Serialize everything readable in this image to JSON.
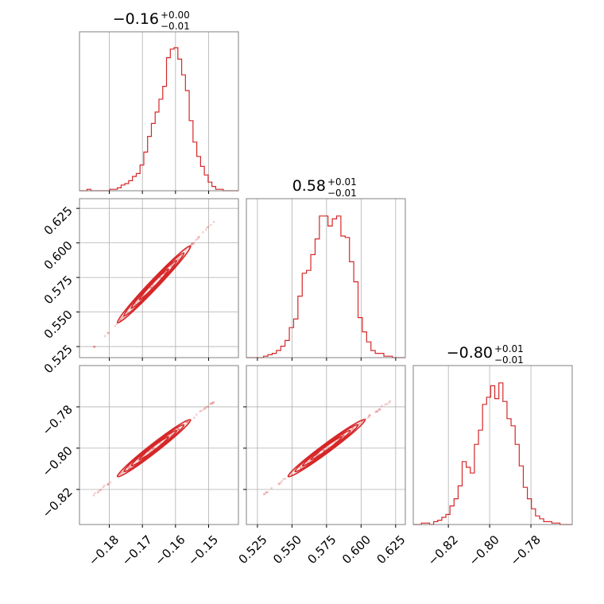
{
  "chart_data": {
    "type": "corner",
    "color": "#d62728",
    "grid": true,
    "params": [
      {
        "median": "−0.16",
        "upper": "+0.00",
        "lower": "−0.01",
        "range": [
          -0.189,
          -0.141
        ],
        "ticks": [
          -0.18,
          -0.17,
          -0.16,
          -0.15
        ],
        "tick_labels": [
          "−0.18",
          "−0.17",
          "−0.16",
          "−0.15"
        ],
        "hist": [
          0.0,
          0.0,
          0.01,
          0.0,
          0.0,
          0.0,
          0.0,
          0.0,
          0.01,
          0.01,
          0.02,
          0.04,
          0.05,
          0.07,
          0.1,
          0.12,
          0.18,
          0.27,
          0.38,
          0.47,
          0.55,
          0.64,
          0.73,
          0.93,
          0.99,
          1.0,
          0.92,
          0.81,
          0.7,
          0.49,
          0.34,
          0.24,
          0.17,
          0.11,
          0.06,
          0.03,
          0.01,
          0.01,
          0.0,
          0.0,
          0.0,
          0.0
        ]
      },
      {
        "median": "0.58",
        "upper": "+0.01",
        "lower": "−0.01",
        "range": [
          0.517,
          0.632
        ],
        "ticks": [
          0.525,
          0.55,
          0.575,
          0.6,
          0.625
        ],
        "tick_labels": [
          "0.525",
          "0.550",
          "0.575",
          "0.600",
          "0.625"
        ],
        "hist": [
          0.0,
          0.0,
          0.0,
          0.0,
          0.01,
          0.02,
          0.03,
          0.05,
          0.08,
          0.12,
          0.21,
          0.27,
          0.43,
          0.59,
          0.61,
          0.72,
          0.83,
          0.99,
          0.99,
          0.92,
          0.97,
          0.99,
          0.85,
          0.84,
          0.67,
          0.53,
          0.28,
          0.18,
          0.11,
          0.05,
          0.03,
          0.03,
          0.01,
          0.01,
          0.0,
          0.0,
          0.0
        ]
      },
      {
        "median": "−0.80",
        "upper": "+0.01",
        "lower": "−0.01",
        "range": [
          -0.837,
          -0.76
        ],
        "ticks": [
          -0.82,
          -0.8,
          -0.78
        ],
        "tick_labels": [
          "−0.82",
          "−0.80",
          "−0.78"
        ],
        "hist": [
          0.0,
          0.0,
          0.01,
          0.01,
          0.0,
          0.02,
          0.03,
          0.05,
          0.07,
          0.13,
          0.18,
          0.27,
          0.44,
          0.4,
          0.36,
          0.56,
          0.66,
          0.84,
          0.89,
          0.97,
          0.88,
          0.99,
          0.86,
          0.74,
          0.69,
          0.56,
          0.41,
          0.26,
          0.18,
          0.11,
          0.06,
          0.04,
          0.02,
          0.02,
          0.01,
          0.01,
          0.0,
          0.0,
          0.0
        ]
      }
    ],
    "pairs": [
      {
        "x": 0,
        "y": 1,
        "slope": 2.52,
        "sx": 0.0055
      },
      {
        "x": 0,
        "y": 2,
        "slope": 1.25,
        "sx": 0.0055
      },
      {
        "x": 1,
        "y": 2,
        "slope": 0.496,
        "sx": 0.0139
      }
    ]
  }
}
